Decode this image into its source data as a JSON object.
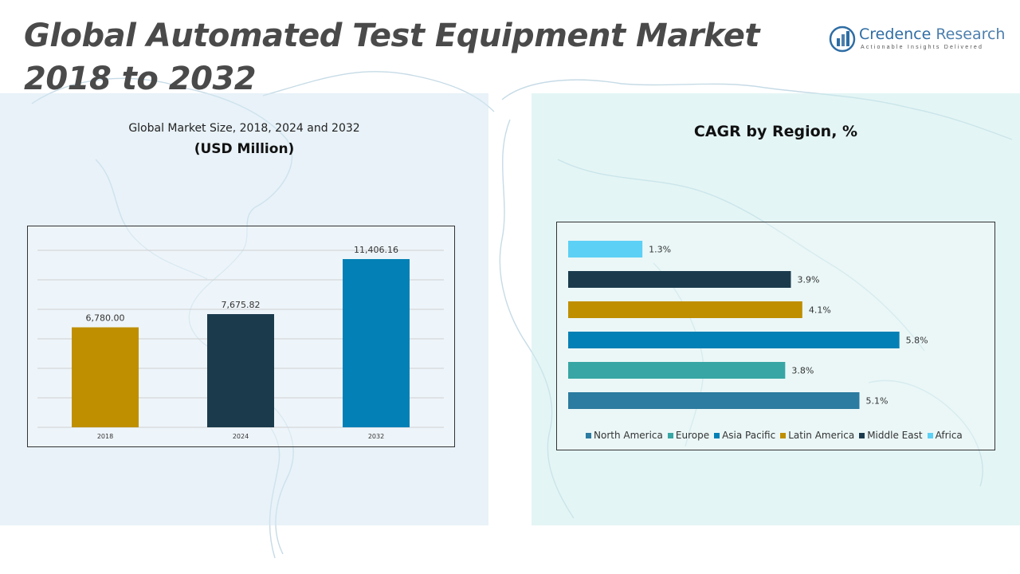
{
  "header": {
    "title": "Global Automated Test Equipment Market 2018 to 2032"
  },
  "logo": {
    "name_part1": "Credence",
    "name_part2": " Research",
    "tagline": "Actionable Insights Delivered",
    "icon": "bar-chart-logo-icon"
  },
  "left_panel": {
    "subtitle": "Global Market Size, 2018, 2024 and 2032",
    "unit": "(USD Million)"
  },
  "right_panel": {
    "title": "CAGR by Region, %"
  },
  "colors": {
    "gold": "#bf8f00",
    "navy": "#1b3b4d",
    "blue": "#0380b5",
    "teal": "#37a6a4",
    "steel": "#2c7ba0",
    "sky": "#5dd0f5",
    "gridline": "#d0d0d0",
    "panel_left": "#d6e8f2",
    "panel_right": "#ceecec"
  },
  "chart_data": [
    {
      "type": "bar",
      "title": "Global Market Size, 2018, 2024 and 2032",
      "ylabel": "(USD Million)",
      "categories": [
        "2018",
        "2024",
        "2032"
      ],
      "values": [
        6780.0,
        7675.82,
        11406.16
      ],
      "value_labels": [
        "6,780.00",
        "7,675.82",
        "11,406.16"
      ],
      "bar_colors": [
        "#bf8f00",
        "#1b3b4d",
        "#0380b5"
      ],
      "ylim": [
        0,
        12000
      ],
      "grid": true
    },
    {
      "type": "bar",
      "orientation": "horizontal",
      "title": "CAGR by Region, %",
      "categories": [
        "Africa",
        "Middle East",
        "Latin America",
        "Asia Pacific",
        "Europe",
        "North America"
      ],
      "values": [
        1.3,
        3.9,
        4.1,
        5.8,
        3.8,
        5.1
      ],
      "value_labels": [
        "1.3%",
        "3.9%",
        "4.1%",
        "5.8%",
        "3.8%",
        "5.1%"
      ],
      "bar_colors": [
        "#5dd0f5",
        "#1b3b4d",
        "#bf8f00",
        "#0380b5",
        "#37a6a4",
        "#2c7ba0"
      ],
      "xlim": [
        0,
        6
      ],
      "grid": false,
      "legend": {
        "position": "bottom",
        "entries": [
          {
            "label": "North America",
            "color": "#2c7ba0"
          },
          {
            "label": "Europe",
            "color": "#37a6a4"
          },
          {
            "label": "Asia Pacific",
            "color": "#0380b5"
          },
          {
            "label": "Latin America",
            "color": "#bf8f00"
          },
          {
            "label": "Middle East",
            "color": "#1b3b4d"
          },
          {
            "label": "Africa",
            "color": "#5dd0f5"
          }
        ]
      }
    }
  ]
}
